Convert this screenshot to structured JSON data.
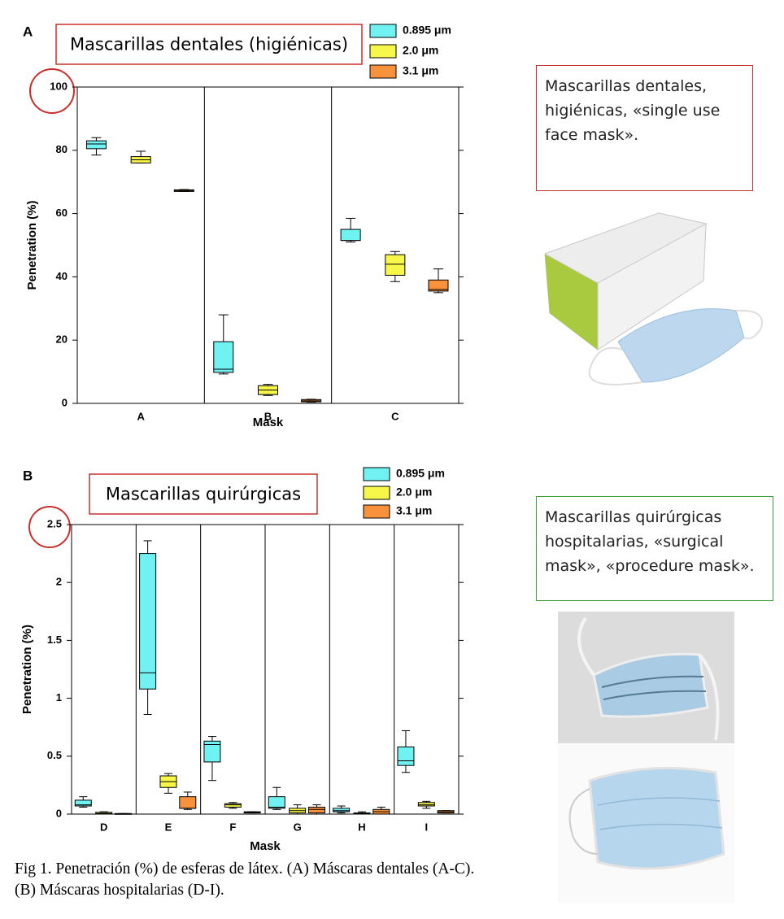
{
  "chart_data": [
    {
      "type": "box",
      "label": "A",
      "title": "Mascarillas dentales (higiénicas)",
      "xlabel": "Mask",
      "ylabel": "Penetration (%)",
      "categories": [
        "A",
        "B",
        "C"
      ],
      "ylim": [
        0,
        100
      ],
      "yticks": [
        0,
        20,
        40,
        60,
        80,
        100
      ],
      "legend": "upper right",
      "series": [
        {
          "name": "0.895 μm",
          "color": "#70f2f2",
          "values": [
            {
              "min": 78.5,
              "q1": 80.5,
              "median": 82,
              "q3": 83,
              "max": 84
            },
            {
              "min": 9.3,
              "q1": 9.8,
              "median": 10.8,
              "q3": 19.5,
              "max": 28
            },
            {
              "min": 51,
              "q1": 51.5,
              "median": 51.5,
              "q3": 55,
              "max": 58.5
            }
          ]
        },
        {
          "name": "2.0 μm",
          "color": "#f7f74a",
          "values": [
            {
              "min": 76,
              "q1": 76,
              "median": 77,
              "q3": 78,
              "max": 79.7
            },
            {
              "min": 2.5,
              "q1": 2.8,
              "median": 4.2,
              "q3": 5.6,
              "max": 6
            },
            {
              "min": 38.5,
              "q1": 40.5,
              "median": 44,
              "q3": 47,
              "max": 48
            }
          ]
        },
        {
          "name": "3.1 μm",
          "color": "#f7913c",
          "values": [
            {
              "min": 67,
              "q1": 67,
              "median": 67.2,
              "q3": 67.5,
              "max": 67.6
            },
            {
              "min": 0.4,
              "q1": 0.5,
              "median": 0.8,
              "q3": 1.2,
              "max": 1.3
            },
            {
              "min": 35,
              "q1": 35.5,
              "median": 36,
              "q3": 39,
              "max": 42.5
            }
          ]
        }
      ]
    },
    {
      "type": "box",
      "label": "B",
      "title": "Mascarillas quirúrgicas",
      "xlabel": "Mask",
      "ylabel": "Penetration (%)",
      "categories": [
        "D",
        "E",
        "F",
        "G",
        "H",
        "I"
      ],
      "ylim": [
        0,
        2.5
      ],
      "yticks": [
        0,
        0.5,
        1,
        1.5,
        2,
        2.5
      ],
      "legend": "upper right",
      "series": [
        {
          "name": "0.895 μm",
          "color": "#70f2f2",
          "values": [
            {
              "min": 0.06,
              "q1": 0.07,
              "median": 0.08,
              "q3": 0.12,
              "max": 0.15
            },
            {
              "min": 0.86,
              "q1": 1.08,
              "median": 1.22,
              "q3": 2.25,
              "max": 2.36
            },
            {
              "min": 0.29,
              "q1": 0.45,
              "median": 0.6,
              "q3": 0.63,
              "max": 0.67
            },
            {
              "min": 0.04,
              "q1": 0.05,
              "median": 0.06,
              "q3": 0.15,
              "max": 0.23
            },
            {
              "min": 0.01,
              "q1": 0.02,
              "median": 0.03,
              "q3": 0.05,
              "max": 0.07
            },
            {
              "min": 0.36,
              "q1": 0.42,
              "median": 0.46,
              "q3": 0.58,
              "max": 0.72
            }
          ]
        },
        {
          "name": "2.0 μm",
          "color": "#f7f74a",
          "values": [
            {
              "min": 0,
              "q1": 0,
              "median": 0.005,
              "q3": 0.015,
              "max": 0.02
            },
            {
              "min": 0.18,
              "q1": 0.23,
              "median": 0.28,
              "q3": 0.33,
              "max": 0.35
            },
            {
              "min": 0.05,
              "q1": 0.06,
              "median": 0.08,
              "q3": 0.09,
              "max": 0.1
            },
            {
              "min": 0,
              "q1": 0.01,
              "median": 0.03,
              "q3": 0.05,
              "max": 0.08
            },
            {
              "min": 0,
              "q1": 0,
              "median": 0.005,
              "q3": 0.01,
              "max": 0.02
            },
            {
              "min": 0.05,
              "q1": 0.07,
              "median": 0.08,
              "q3": 0.1,
              "max": 0.11
            }
          ]
        },
        {
          "name": "3.1 μm",
          "color": "#f7913c",
          "values": [
            {
              "min": 0,
              "q1": 0,
              "median": 0.002,
              "q3": 0.005,
              "max": 0.005
            },
            {
              "min": 0.04,
              "q1": 0.05,
              "median": 0.05,
              "q3": 0.15,
              "max": 0.19
            },
            {
              "min": 0.01,
              "q1": 0.01,
              "median": 0.015,
              "q3": 0.02,
              "max": 0.02
            },
            {
              "min": 0,
              "q1": 0.01,
              "median": 0.04,
              "q3": 0.06,
              "max": 0.08
            },
            {
              "min": 0,
              "q1": 0,
              "median": 0.02,
              "q3": 0.04,
              "max": 0.06
            },
            {
              "min": 0.01,
              "q1": 0.01,
              "median": 0.02,
              "q3": 0.03,
              "max": 0.03
            }
          ]
        }
      ]
    }
  ],
  "annotations": [
    {
      "text": "Mascarillas dentales, higiénicas, «single use face mask»."
    },
    {
      "text": "Mascarillas quirúrgicas hospitalarias, «surgical mask», «procedure mask»."
    }
  ],
  "caption": "Fig 1. Penetración (%) de esferas de látex. (A) Máscaras dentales (A-C). (B) Máscaras hospitalarias (D-I)."
}
